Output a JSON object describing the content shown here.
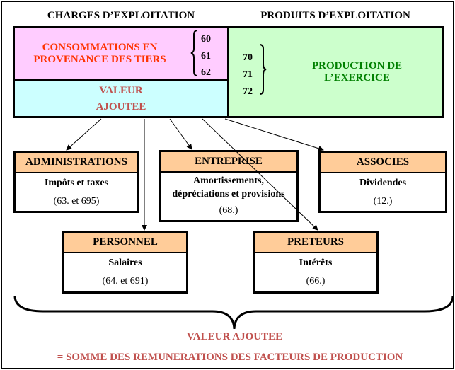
{
  "headers": {
    "charges": "CHARGES D’EXPLOITATION",
    "produits": "PRODUITS D’EXPLOITATION"
  },
  "consommations": {
    "line1": "CONSOMMATIONS EN",
    "line2": "PROVENANCE DES TIERS",
    "accounts": [
      "60",
      "61",
      "62"
    ],
    "color": "#ffccff",
    "text_color": "#ff3300"
  },
  "valeur": {
    "line1": "VALEUR",
    "line2": "AJOUTEE",
    "color": "#ccffff",
    "text_color": "#c0504d"
  },
  "production": {
    "line1": "PRODUCTION DE",
    "line2": "L’EXERCICE",
    "accounts": [
      "70",
      "71",
      "72"
    ],
    "color": "#ccffcc",
    "text_color": "#008000"
  },
  "boxes": [
    {
      "title": "ADMINISTRATIONS",
      "desc": "Impôts et taxes",
      "code": "(63. et 695)"
    },
    {
      "title": "ENTREPRISE",
      "desc1": "Amortissements,",
      "desc2": "dépréciations et provisions",
      "code": "(68.)"
    },
    {
      "title": "ASSOCIES",
      "desc": "Dividendes",
      "code": "(12.)"
    },
    {
      "title": "PERSONNEL",
      "desc": "Salaires",
      "code": "(64. et 691)"
    },
    {
      "title": "PRETEURS",
      "desc": "Intérêts",
      "code": "(66.)"
    }
  ],
  "footer": {
    "line1": "VALEUR AJOUTEE",
    "line2": "= SOMME DES REMUNERATIONS DES FACTEURS DE PRODUCTION"
  },
  "header_color": "#ffcc99"
}
